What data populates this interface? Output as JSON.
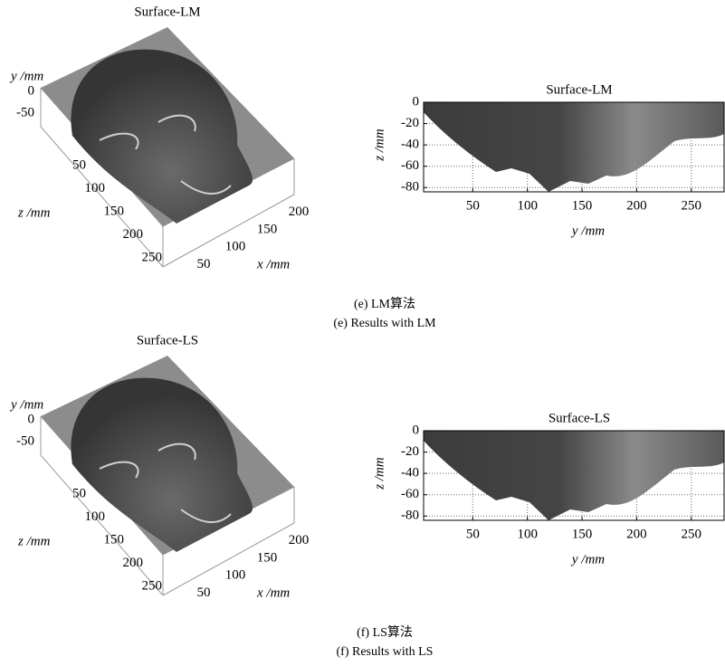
{
  "figures": [
    {
      "panel_3d": {
        "title": "Surface-LM",
        "y_label": "y /mm",
        "z_label": "z /mm",
        "x_label": "x /mm",
        "y_ticks": [
          0,
          -50
        ],
        "z_ticks": [
          50,
          100,
          150,
          200,
          250
        ],
        "x_ticks": [
          50,
          100,
          150,
          200
        ]
      },
      "panel_side": {
        "title": "Surface-LM",
        "x_label": "y /mm",
        "y_label": "z /mm",
        "xlim": [
          5,
          280
        ],
        "xticks": [
          50,
          100,
          150,
          200,
          250
        ],
        "ylim": [
          -84,
          0
        ],
        "yticks": [
          0,
          -20,
          -40,
          -60,
          -80
        ]
      },
      "caption_cn": "(e) LM算法",
      "caption_en": "(e) Results with LM"
    },
    {
      "panel_3d": {
        "title": "Surface-LS",
        "y_label": "y /mm",
        "z_label": "z /mm",
        "x_label": "x /mm",
        "y_ticks": [
          0,
          -50
        ],
        "z_ticks": [
          50,
          100,
          150,
          200,
          250
        ],
        "x_ticks": [
          50,
          100,
          150,
          200
        ]
      },
      "panel_side": {
        "title": "Surface-LS",
        "x_label": "y /mm",
        "y_label": "z /mm",
        "xlim": [
          5,
          280
        ],
        "xticks": [
          50,
          100,
          150,
          200,
          250
        ],
        "ylim": [
          -84,
          0
        ],
        "yticks": [
          0,
          -20,
          -40,
          -60,
          -80
        ]
      },
      "caption_cn": "(f) LS算法",
      "caption_en": "(f) Results with LS"
    }
  ]
}
